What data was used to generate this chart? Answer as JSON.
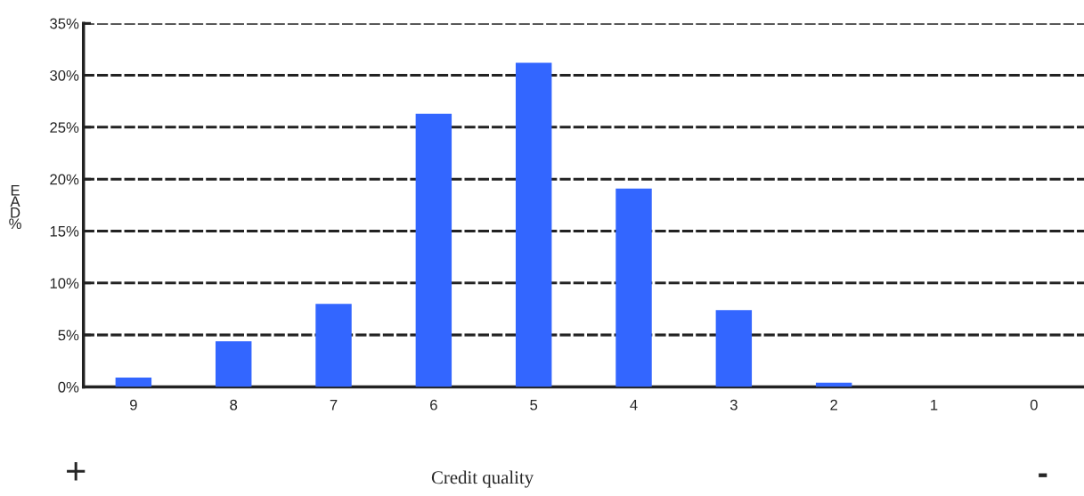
{
  "chart_data": {
    "type": "bar",
    "categories": [
      "9",
      "8",
      "7",
      "6",
      "5",
      "4",
      "3",
      "2",
      "1",
      "0"
    ],
    "values": [
      0.9,
      4.4,
      8.0,
      26.3,
      31.2,
      19.1,
      7.4,
      0.4,
      0,
      0
    ],
    "color": "#3366ff",
    "xlabel": "Credit quality",
    "ylabel": "EAD %",
    "ylim": [
      0,
      35
    ],
    "yticks": [
      {
        "value": 0,
        "label": "0%"
      },
      {
        "value": 5,
        "label": "5%"
      },
      {
        "value": 10,
        "label": "10%"
      },
      {
        "value": 15,
        "label": "15%"
      },
      {
        "value": 20,
        "label": "20%"
      },
      {
        "value": 25,
        "label": "25%"
      },
      {
        "value": 30,
        "label": "30%"
      },
      {
        "value": 35,
        "label": "35%"
      }
    ],
    "grid": "y",
    "annotations": [
      "+",
      "-"
    ]
  }
}
